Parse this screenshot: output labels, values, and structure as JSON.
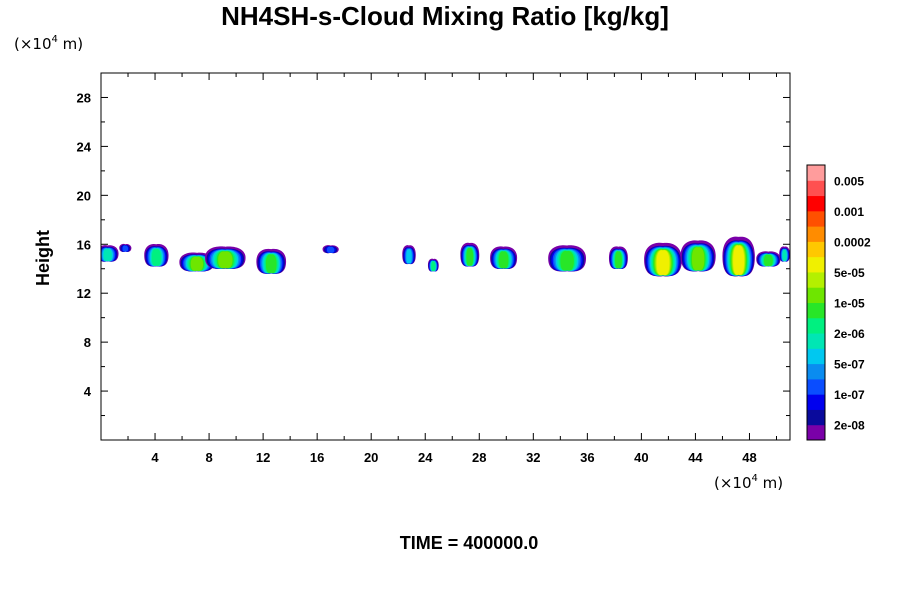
{
  "chart_data": {
    "type": "heatmap",
    "title": "NH4SH-s-Cloud Mixing Ratio [kg/kg]",
    "ylabel": "Height",
    "xlabel": "",
    "x_unit": {
      "prefix": "(×10",
      "exp": "4",
      "suffix": " m)"
    },
    "y_unit": {
      "prefix": "(×10",
      "exp": "4",
      "suffix": " m)"
    },
    "xlim": [
      0,
      51
    ],
    "ylim": [
      0,
      30
    ],
    "x_ticks": [
      "4",
      "8",
      "12",
      "16",
      "20",
      "24",
      "28",
      "32",
      "36",
      "40",
      "44",
      "48"
    ],
    "y_ticks": [
      "4",
      "8",
      "12",
      "16",
      "20",
      "24",
      "28"
    ],
    "colorbar": {
      "colors": [
        "#7a00a8",
        "#0a0a9c",
        "#0000ee",
        "#0a4dff",
        "#0a8cf0",
        "#00c8f0",
        "#00e6b4",
        "#00f080",
        "#28e628",
        "#6ee600",
        "#b4f000",
        "#f0f000",
        "#ffc800",
        "#ff8c00",
        "#ff5000",
        "#ff0000",
        "#ff5050",
        "#ff9c9c"
      ],
      "labels": [
        "2e-08",
        "1e-07",
        "5e-07",
        "2e-06",
        "1e-05",
        "5e-05",
        "0.0002",
        "0.001",
        "0.005"
      ]
    },
    "clouds": [
      {
        "x": 0.5,
        "y_top": 15.9,
        "y_bottom": 14.6,
        "width": 1.6,
        "max_level": 6
      },
      {
        "x": 1.8,
        "y_top": 16.0,
        "y_bottom": 15.4,
        "width": 0.9,
        "max_level": 3
      },
      {
        "x": 4.1,
        "y_top": 16.0,
        "y_bottom": 14.2,
        "width": 1.8,
        "max_level": 7
      },
      {
        "x": 7.1,
        "y_top": 15.3,
        "y_bottom": 13.8,
        "width": 2.6,
        "max_level": 9
      },
      {
        "x": 9.2,
        "y_top": 15.8,
        "y_bottom": 14.0,
        "width": 3.0,
        "max_level": 9
      },
      {
        "x": 12.6,
        "y_top": 15.6,
        "y_bottom": 13.6,
        "width": 2.2,
        "max_level": 8
      },
      {
        "x": 17.0,
        "y_top": 15.9,
        "y_bottom": 15.3,
        "width": 1.2,
        "max_level": 3
      },
      {
        "x": 22.8,
        "y_top": 15.9,
        "y_bottom": 14.4,
        "width": 1.0,
        "max_level": 5
      },
      {
        "x": 24.6,
        "y_top": 14.8,
        "y_bottom": 13.8,
        "width": 0.8,
        "max_level": 7
      },
      {
        "x": 27.3,
        "y_top": 16.1,
        "y_bottom": 14.2,
        "width": 1.4,
        "max_level": 8
      },
      {
        "x": 29.8,
        "y_top": 15.8,
        "y_bottom": 14.0,
        "width": 2.0,
        "max_level": 8
      },
      {
        "x": 34.5,
        "y_top": 15.9,
        "y_bottom": 13.8,
        "width": 2.8,
        "max_level": 8
      },
      {
        "x": 38.3,
        "y_top": 15.8,
        "y_bottom": 14.0,
        "width": 1.4,
        "max_level": 8
      },
      {
        "x": 41.6,
        "y_top": 16.1,
        "y_bottom": 13.4,
        "width": 2.8,
        "max_level": 11
      },
      {
        "x": 44.2,
        "y_top": 16.3,
        "y_bottom": 13.8,
        "width": 2.6,
        "max_level": 9
      },
      {
        "x": 47.2,
        "y_top": 16.6,
        "y_bottom": 13.4,
        "width": 2.4,
        "max_level": 11
      },
      {
        "x": 49.4,
        "y_top": 15.4,
        "y_bottom": 14.2,
        "width": 1.8,
        "max_level": 8
      },
      {
        "x": 50.6,
        "y_top": 15.8,
        "y_bottom": 14.6,
        "width": 0.8,
        "max_level": 6
      }
    ]
  },
  "footer": {
    "time_label": "TIME = 400000.0"
  }
}
